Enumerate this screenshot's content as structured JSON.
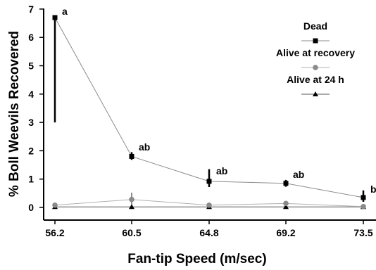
{
  "chart_data": {
    "type": "line",
    "xlabel": "Fan-tip Speed (m/sec)",
    "ylabel": "% Boll Weevils Recovered",
    "x_categories": [
      "56.2",
      "60.5",
      "64.8",
      "69.2",
      "73.5"
    ],
    "ylim": [
      0,
      7
    ],
    "yticks": [
      0,
      1,
      2,
      3,
      4,
      5,
      6,
      7
    ],
    "grid": false,
    "legend_position": "top-right",
    "series": [
      {
        "name": "Dead",
        "marker": "square",
        "color": "#000000",
        "line_color": "#8c8c8c",
        "values": [
          6.7,
          1.8,
          0.92,
          0.85,
          0.35
        ],
        "error_low": [
          3.0,
          1.68,
          0.72,
          0.73,
          0.2
        ],
        "error_high": [
          6.7,
          1.95,
          1.35,
          0.97,
          0.6
        ],
        "annotations": [
          "a",
          "ab",
          "ab",
          "ab",
          "b"
        ]
      },
      {
        "name": "Alive at recovery",
        "marker": "circle",
        "color": "#8a8a8a",
        "line_color": "#b0b0b0",
        "values": [
          0.08,
          0.28,
          0.08,
          0.14,
          0.03
        ],
        "error_low": [
          0.05,
          0.1,
          0.05,
          0.08,
          0.02
        ],
        "error_high": [
          0.12,
          0.52,
          0.12,
          0.22,
          0.05
        ]
      },
      {
        "name": "Alive at 24 h",
        "marker": "triangle",
        "color": "#000000",
        "line_color": "#555555",
        "values": [
          0.02,
          0.02,
          0.02,
          0.02,
          0.02
        ]
      }
    ]
  }
}
